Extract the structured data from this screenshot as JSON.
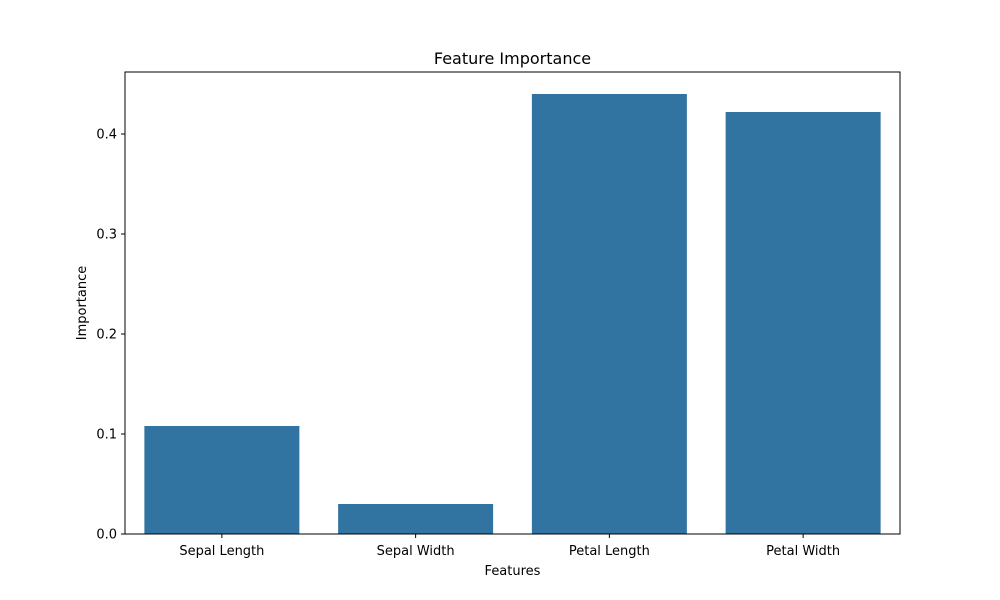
{
  "chart_data": {
    "type": "bar",
    "title": "Feature Importance",
    "xlabel": "Features",
    "ylabel": "Importance",
    "categories": [
      "Sepal Length",
      "Sepal Width",
      "Petal Length",
      "Petal Width"
    ],
    "values": [
      0.108,
      0.03,
      0.44,
      0.422
    ],
    "ylim": [
      0,
      0.462
    ],
    "yticks": [
      0.0,
      0.1,
      0.2,
      0.3,
      0.4
    ],
    "ytick_labels": [
      "0.0",
      "0.1",
      "0.2",
      "0.3",
      "0.4"
    ],
    "bar_color": "#3274a1",
    "grid": false,
    "legend": "none"
  }
}
